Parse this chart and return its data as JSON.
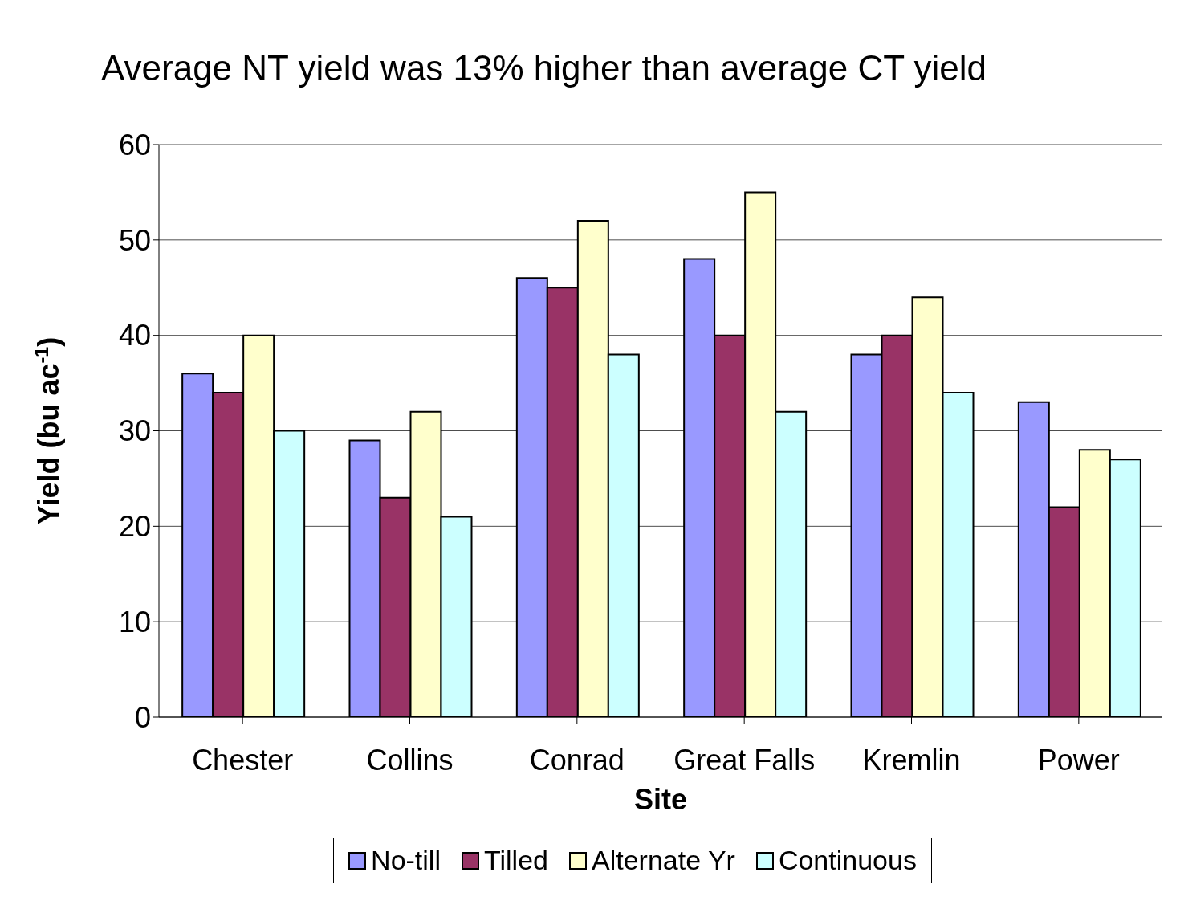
{
  "chart_data": {
    "type": "bar",
    "title": "Average NT yield was 13% higher than average CT yield",
    "xlabel": "Site",
    "ylabel": "Yield (bu ac$^{-1}$)",
    "categories": [
      "Chester",
      "Collins",
      "Conrad",
      "Great Falls",
      "Kremlin",
      "Power"
    ],
    "series": [
      {
        "name": "No-till",
        "color": "#9999ff",
        "values": [
          36,
          29,
          46,
          48,
          38,
          33
        ]
      },
      {
        "name": "Tilled",
        "color": "#993366",
        "values": [
          34,
          23,
          45,
          40,
          40,
          22
        ]
      },
      {
        "name": "Alternate Yr",
        "color": "#ffffcc",
        "values": [
          40,
          32,
          52,
          55,
          44,
          28
        ]
      },
      {
        "name": "Continuous",
        "color": "#ccffff",
        "values": [
          30,
          21,
          38,
          32,
          34,
          27
        ]
      }
    ],
    "ylim": [
      0,
      60
    ],
    "yticks": [
      0,
      10,
      20,
      30,
      40,
      50,
      60
    ],
    "grid": "y",
    "legend": "bottom"
  }
}
